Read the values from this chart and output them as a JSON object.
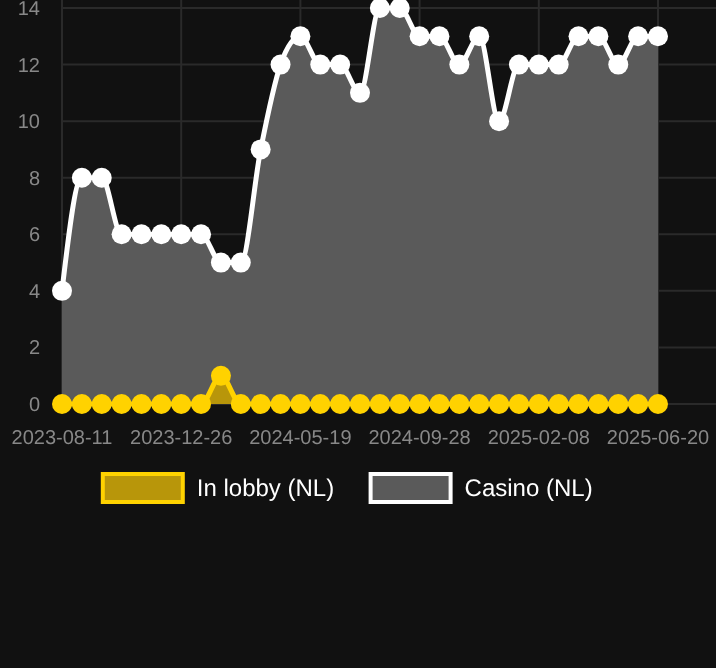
{
  "chart_data": {
    "type": "area",
    "categories": [
      "2023-08-11",
      null,
      null,
      null,
      null,
      null,
      "2023-12-26",
      null,
      null,
      null,
      null,
      null,
      "2024-05-19",
      null,
      null,
      null,
      null,
      null,
      "2024-09-28",
      null,
      null,
      null,
      null,
      null,
      "2025-02-08",
      null,
      null,
      null,
      null,
      null,
      "2025-06-20"
    ],
    "series": [
      {
        "name": "In lobby (NL)",
        "color": "#ffd200",
        "values": [
          0,
          0,
          0,
          0,
          0,
          0,
          0,
          0,
          1,
          0,
          0,
          0,
          0,
          0,
          0,
          0,
          0,
          0,
          0,
          0,
          0,
          0,
          0,
          0,
          0,
          0,
          0,
          0,
          0,
          0,
          0
        ]
      },
      {
        "name": "Casino (NL)",
        "color": "#ffffff",
        "values": [
          4,
          8,
          8,
          6,
          6,
          6,
          6,
          6,
          5,
          5,
          9,
          12,
          13,
          12,
          12,
          11,
          14,
          14,
          13,
          13,
          12,
          13,
          10,
          12,
          12,
          12,
          13,
          13,
          12,
          13,
          13
        ]
      }
    ],
    "ylim": [
      0,
      14
    ],
    "yticks": [
      0,
      2,
      4,
      6,
      8,
      10,
      12,
      14
    ],
    "grid": true,
    "legend": "bottom",
    "marker": "circle"
  }
}
